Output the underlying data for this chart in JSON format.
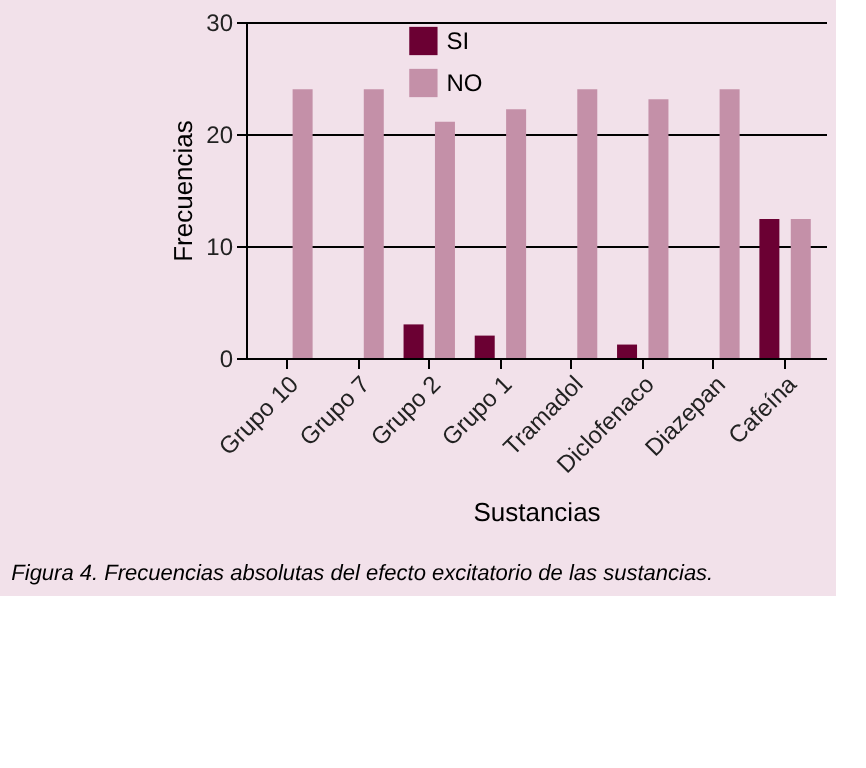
{
  "chart_data": {
    "type": "bar",
    "xlabel": "Sustancias",
    "ylabel": "Frecuencias",
    "categories": [
      "Grupo 10",
      "Grupo 7",
      "Grupo 2",
      "Grupo 1",
      "Tramadol",
      "Diclofenaco",
      "Diazepan",
      "Cafeína"
    ],
    "series": [
      {
        "name": "SI",
        "color": "#6b0033",
        "values": [
          0,
          0,
          3,
          2,
          0,
          1.2,
          0,
          12.4
        ]
      },
      {
        "name": "NO",
        "color": "#c490a8",
        "values": [
          24,
          24,
          21.1,
          22.2,
          24,
          23.1,
          24,
          12.4
        ]
      }
    ],
    "ylim": [
      0,
      30
    ],
    "yticks": [
      0,
      10,
      20,
      30
    ],
    "grid": "y",
    "legend": "top",
    "annotations": [
      "Figura 4. Frecuencias absolutas del efecto excitatorio de las sustancias."
    ]
  }
}
